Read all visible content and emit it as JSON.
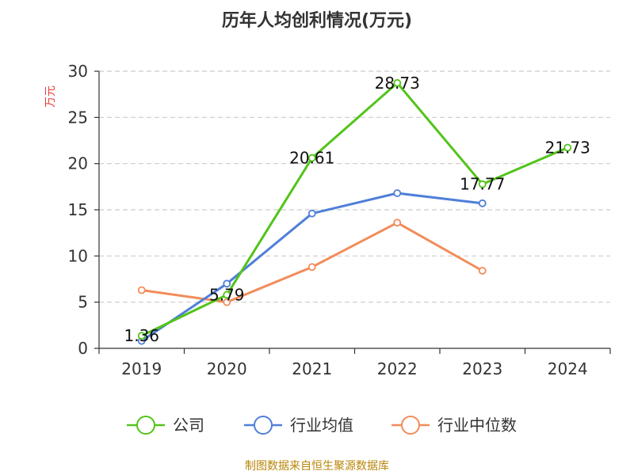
{
  "chart_data": {
    "type": "line",
    "title": "历年人均创利情况(万元)",
    "ylabel": "万元",
    "categories": [
      "2019",
      "2020",
      "2021",
      "2022",
      "2023",
      "2024"
    ],
    "yticks": [
      "0",
      "5",
      "10",
      "15",
      "20",
      "25",
      "30"
    ],
    "ylim": [
      0,
      30
    ],
    "grid": true,
    "legend_position": "bottom",
    "series": [
      {
        "name": "公司",
        "color": "#52c41a",
        "values": [
          1.36,
          5.79,
          20.61,
          28.73,
          17.77,
          21.73
        ],
        "labels": [
          "1.36",
          "5.79",
          "20.61",
          "28.73",
          "17.77",
          "21.73"
        ]
      },
      {
        "name": "行业均值",
        "color": "#4f7fd9",
        "values": [
          0.8,
          7.0,
          14.6,
          16.8,
          15.7,
          null
        ]
      },
      {
        "name": "行业中位数",
        "color": "#f28c5a",
        "values": [
          6.3,
          5.0,
          8.8,
          13.6,
          8.4,
          null
        ]
      }
    ]
  },
  "source": "制图数据来自恒生聚源数据库"
}
